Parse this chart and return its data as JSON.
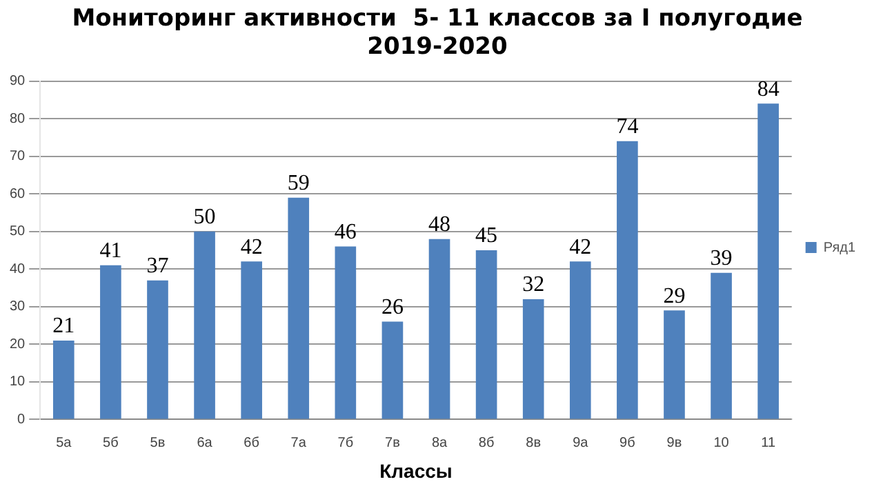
{
  "chart_data": {
    "type": "bar",
    "title": [
      "Мониторинг активности  5- 11 классов за I полугодие",
      "2019-2020"
    ],
    "xlabel": "Классы",
    "categories": [
      "5а",
      "5б",
      "5в",
      "6а",
      "6б",
      "7а",
      "7б",
      "7в",
      "8а",
      "8б",
      "8в",
      "9а",
      "9б",
      "9в",
      "10",
      "11"
    ],
    "series": [
      {
        "name": "Ряд1",
        "color": "#4f81bd",
        "values": [
          21,
          41,
          37,
          50,
          42,
          59,
          46,
          26,
          48,
          45,
          32,
          42,
          74,
          29,
          39,
          84
        ]
      }
    ],
    "ylim": [
      0,
      90
    ],
    "yticks": [
      0,
      10,
      20,
      30,
      40,
      50,
      60,
      70,
      80,
      90
    ],
    "grid": "y",
    "legend": "right",
    "data_labels": true
  }
}
